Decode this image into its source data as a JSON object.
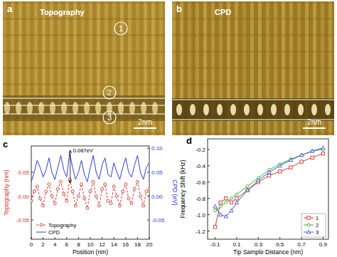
{
  "images": [
    {
      "label": "a",
      "title": "Topography",
      "markers": [
        "1",
        "2",
        "3"
      ],
      "scale_bar": "2nm"
    },
    {
      "label": "b",
      "title": "CPD",
      "scale_bar": "2nm"
    }
  ],
  "chart_data": [
    {
      "type": "line",
      "panel": "c",
      "x": [
        0,
        0.5,
        1,
        1.5,
        2,
        2.5,
        3,
        3.5,
        4,
        4.5,
        5,
        5.5,
        6,
        6.5,
        7,
        7.5,
        8,
        8.5,
        9,
        9.5,
        10,
        10.5,
        11,
        11.5,
        12,
        12.5,
        13,
        13.5,
        14,
        14.5,
        15,
        15.5,
        16,
        16.5,
        17,
        17.5,
        18,
        18.5,
        19,
        19.5,
        20
      ],
      "xlim": [
        0,
        20
      ],
      "xticks": [
        0,
        2,
        4,
        6,
        8,
        10,
        12,
        14,
        16,
        18,
        20
      ],
      "xlabel": "Position (nm)",
      "ylabel": "Topography (nm)",
      "ylim": [
        -0.09,
        0.105
      ],
      "yticks": [
        0.05,
        {
          "value": 0,
          "label": "0.00"
        },
        -0.05
      ],
      "y2label": "CPD (eV)",
      "y2lim": [
        -0.09,
        0.105
      ],
      "y2ticks": [
        {
          "value": 0.1,
          "label": "0.10"
        },
        0.05,
        {
          "value": 0,
          "label": "0.00"
        },
        -0.05
      ],
      "series": [
        {
          "name": "Topography",
          "color": "#d9342b",
          "line_style": "dashed",
          "marker": "circle",
          "values": [
            -0.01,
            0.01,
            0.02,
            -0.005,
            -0.02,
            0.01,
            0.025,
            0.0,
            -0.015,
            0.015,
            0.03,
            0.005,
            -0.01,
            0.035,
            0.01,
            -0.02,
            0.0,
            0.025,
            -0.005,
            -0.025,
            0.01,
            0.03,
            0.0,
            -0.02,
            0.015,
            0.025,
            -0.01,
            -0.015,
            0.02,
            0.0,
            -0.02,
            0.01,
            0.025,
            -0.005,
            -0.015,
            0.015,
            0.03,
            0.0,
            -0.02,
            0.01,
            0.015
          ]
        },
        {
          "name": "CPD",
          "color": "#2b3fd9",
          "line_style": "solid",
          "axis": "y2",
          "values": [
            0.03,
            0.05,
            0.075,
            0.06,
            0.04,
            0.055,
            0.08,
            0.05,
            0.035,
            0.06,
            0.085,
            0.055,
            0.04,
            0.09,
            0.06,
            0.035,
            0.05,
            0.075,
            0.045,
            0.03,
            0.06,
            0.085,
            0.05,
            0.035,
            0.065,
            0.08,
            0.045,
            0.04,
            0.07,
            0.05,
            0.035,
            0.06,
            0.08,
            0.05,
            0.04,
            0.065,
            0.085,
            0.05,
            0.035,
            0.06,
            0.07
          ]
        }
      ],
      "annotations": [
        {
          "text": "0.087eV"
        }
      ],
      "legend": "lower left"
    },
    {
      "type": "line",
      "panel": "d",
      "x": [
        -0.1,
        -0.05,
        0,
        0.05,
        0.1,
        0.2,
        0.3,
        0.4,
        0.5,
        0.6,
        0.7,
        0.8,
        0.9
      ],
      "xlim": [
        -0.17,
        0.95
      ],
      "xticks": [
        -0.1,
        0.1,
        0.3,
        0.5,
        0.7,
        0.9
      ],
      "xlabel": "Tip Sample Distance (nm)",
      "ylabel": "Frequency Shift (kHz)",
      "ylim": [
        -1.3,
        -0.07
      ],
      "yticks": [
        -0.2,
        -0.4,
        -0.6,
        -0.8,
        {
          "value": -1,
          "label": "-1.0"
        },
        -1.2
      ],
      "series": [
        {
          "name": "1",
          "color": "#d9342b",
          "marker": "square",
          "line_style": "solid",
          "values": [
            -1.15,
            -0.85,
            -0.8,
            -0.85,
            -0.8,
            -0.7,
            -0.6,
            -0.52,
            -0.47,
            -0.42,
            -0.35,
            -0.3,
            -0.25
          ]
        },
        {
          "name": "2",
          "color": "#2eb82e",
          "marker": "circle",
          "line_style": "solid",
          "values": [
            -0.95,
            -0.9,
            -0.85,
            -0.8,
            -0.75,
            -0.65,
            -0.55,
            -0.45,
            -0.38,
            -0.32,
            -0.27,
            -0.22,
            -0.2
          ]
        },
        {
          "name": "3",
          "color": "#3b4fd9",
          "marker": "triangle",
          "line_style": "solid",
          "values": [
            -0.9,
            -1.0,
            -1.02,
            -0.95,
            -0.85,
            -0.7,
            -0.58,
            -0.48,
            -0.4,
            -0.33,
            -0.27,
            -0.22,
            -0.18
          ]
        }
      ],
      "legend": "lower right"
    }
  ]
}
